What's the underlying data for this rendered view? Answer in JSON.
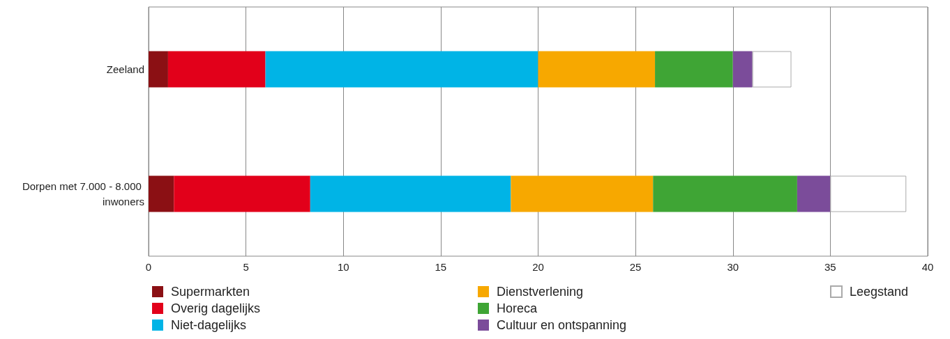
{
  "chart_data": {
    "type": "bar",
    "orientation": "horizontal",
    "stacked": true,
    "categories": [
      "Zeeland",
      "Dorpen met 7.000 - 8.000 inwoners"
    ],
    "series": [
      {
        "name": "Supermarkten",
        "color": "#8b1014",
        "values": [
          1.0,
          1.3
        ]
      },
      {
        "name": "Overig dagelijks",
        "color": "#e2001a",
        "values": [
          5.0,
          7.0
        ]
      },
      {
        "name": "Niet-dagelijks",
        "color": "#00b4e6",
        "values": [
          14.0,
          10.3
        ]
      },
      {
        "name": "Dienstverlening",
        "color": "#f7a800",
        "values": [
          6.0,
          7.3
        ]
      },
      {
        "name": "Horeca",
        "color": "#3fa535",
        "values": [
          4.0,
          7.4
        ]
      },
      {
        "name": "Cultuur en ontspanning",
        "color": "#7b4c9a",
        "values": [
          1.0,
          1.7
        ]
      },
      {
        "name": "Leegstand",
        "color": "#ffffff",
        "values": [
          2.0,
          3.9
        ]
      }
    ],
    "xlim": [
      0,
      40
    ],
    "xticks": [
      0,
      5,
      10,
      15,
      20,
      25,
      30,
      35,
      40
    ],
    "grid": "x",
    "legend": "bottom"
  }
}
